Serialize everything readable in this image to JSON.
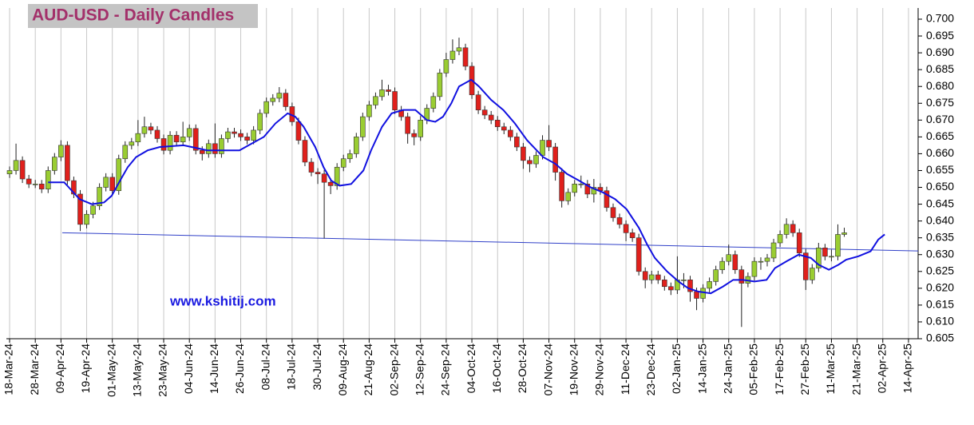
{
  "chart_data": {
    "type": "candlestick",
    "title": "AUD-USD - Daily Candles",
    "annotation": "www.kshitij.com",
    "up_color": "#9acd32",
    "down_color": "#e0201c",
    "grid": true,
    "xlim": [
      -0.5,
      141.5
    ],
    "ylim": [
      0.605,
      0.7
    ],
    "yticks": [
      {
        "value": 0.605,
        "label": "0.605"
      },
      {
        "value": 0.61,
        "label": "0.610"
      },
      0.615,
      {
        "value": 0.62,
        "label": "0.620"
      },
      0.625,
      {
        "value": 0.63,
        "label": "0.630"
      },
      0.635,
      {
        "value": 0.64,
        "label": "0.640"
      },
      0.645,
      {
        "value": 0.65,
        "label": "0.650"
      },
      0.655,
      {
        "value": 0.66,
        "label": "0.660"
      },
      0.665,
      {
        "value": 0.67,
        "label": "0.670"
      },
      0.675,
      {
        "value": 0.68,
        "label": "0.680"
      },
      0.685,
      {
        "value": 0.69,
        "label": "0.690"
      },
      0.695,
      {
        "value": 0.7,
        "label": "0.700"
      }
    ],
    "xticks": [
      {
        "value": 0,
        "label": "18-Mar-24"
      },
      {
        "value": 4,
        "label": "28-Mar-24"
      },
      {
        "value": 8,
        "label": "09-Apr-24"
      },
      {
        "value": 12,
        "label": "19-Apr-24"
      },
      {
        "value": 16,
        "label": "01-May-24"
      },
      {
        "value": 20,
        "label": "13-May-24"
      },
      {
        "value": 24,
        "label": "23-May-24"
      },
      {
        "value": 28,
        "label": "04-Jun-24"
      },
      {
        "value": 32,
        "label": "14-Jun-24"
      },
      {
        "value": 36,
        "label": "26-Jun-24"
      },
      {
        "value": 40,
        "label": "08-Jul-24"
      },
      {
        "value": 44,
        "label": "18-Jul-24"
      },
      {
        "value": 48,
        "label": "30-Jul-24"
      },
      {
        "value": 52,
        "label": "09-Aug-24"
      },
      {
        "value": 56,
        "label": "21-Aug-24"
      },
      {
        "value": 60,
        "label": "02-Sep-24"
      },
      {
        "value": 64,
        "label": "12-Sep-24"
      },
      {
        "value": 68,
        "label": "24-Sep-24"
      },
      {
        "value": 72,
        "label": "04-Oct-24"
      },
      {
        "value": 76,
        "label": "16-Oct-24"
      },
      {
        "value": 80,
        "label": "28-Oct-24"
      },
      {
        "value": 84,
        "label": "07-Nov-24"
      },
      {
        "value": 88,
        "label": "19-Nov-24"
      },
      {
        "value": 92,
        "label": "29-Nov-24"
      },
      {
        "value": 96,
        "label": "11-Dec-24"
      },
      {
        "value": 100,
        "label": "23-Dec-24"
      },
      {
        "value": 104,
        "label": "02-Jan-25"
      },
      {
        "value": 108,
        "label": "14-Jan-25"
      },
      {
        "value": 112,
        "label": "24-Jan-25"
      },
      {
        "value": 116,
        "label": "05-Feb-25"
      },
      {
        "value": 120,
        "label": "17-Feb-25"
      },
      {
        "value": 124,
        "label": "27-Feb-25"
      },
      {
        "value": 128,
        "label": "11-Mar-25"
      },
      {
        "value": 132,
        "label": "21-Mar-25"
      },
      {
        "value": 136,
        "label": "02-Apr-25"
      },
      {
        "value": 140,
        "label": "14-Apr-25"
      }
    ],
    "open": [
      0.654,
      0.655,
      0.658,
      0.6525,
      0.651,
      0.651,
      0.6495,
      0.655,
      0.659,
      0.6625,
      0.652,
      0.648,
      0.639,
      0.642,
      0.6445,
      0.65,
      0.653,
      0.649,
      0.6585,
      0.6625,
      0.6635,
      0.666,
      0.668,
      0.667,
      0.6645,
      0.661,
      0.6655,
      0.6635,
      0.665,
      0.6675,
      0.661,
      0.66,
      0.663,
      0.66,
      0.6645,
      0.6665,
      0.666,
      0.665,
      0.664,
      0.667,
      0.672,
      0.6755,
      0.6765,
      0.678,
      0.674,
      0.6695,
      0.664,
      0.6575,
      0.6545,
      0.654,
      0.6515,
      0.6505,
      0.656,
      0.6585,
      0.66,
      0.665,
      0.671,
      0.6745,
      0.677,
      0.679,
      0.6785,
      0.673,
      0.671,
      0.666,
      0.665,
      0.67,
      0.6735,
      0.677,
      0.684,
      0.688,
      0.6905,
      0.6915,
      0.686,
      0.6775,
      0.673,
      0.6715,
      0.67,
      0.668,
      0.667,
      0.665,
      0.662,
      0.658,
      0.657,
      0.6595,
      0.664,
      0.662,
      0.6545,
      0.646,
      0.6485,
      0.651,
      0.651,
      0.648,
      0.65,
      0.649,
      0.644,
      0.641,
      0.639,
      0.6365,
      0.635,
      0.625,
      0.6225,
      0.624,
      0.6225,
      0.6205,
      0.6195,
      0.6225,
      0.6225,
      0.619,
      0.617,
      0.62,
      0.622,
      0.6255,
      0.628,
      0.63,
      0.6255,
      0.6215,
      0.6235,
      0.628,
      0.628,
      0.629,
      0.6335,
      0.636,
      0.639,
      0.6365,
      0.6305,
      0.6225,
      0.626,
      0.632,
      0.6295,
      0.6295,
      0.636
    ],
    "high": [
      0.6562,
      0.663,
      0.6592,
      0.6537,
      0.6522,
      0.6522,
      0.6562,
      0.6602,
      0.664,
      0.6637,
      0.6532,
      0.6492,
      0.6432,
      0.6457,
      0.6512,
      0.6542,
      0.6542,
      0.6597,
      0.6637,
      0.6647,
      0.67,
      0.671,
      0.6692,
      0.6682,
      0.6657,
      0.6667,
      0.6667,
      0.6695,
      0.6687,
      0.6687,
      0.6622,
      0.6642,
      0.669,
      0.6657,
      0.6677,
      0.6677,
      0.6672,
      0.6662,
      0.6682,
      0.6732,
      0.6767,
      0.6777,
      0.6798,
      0.6792,
      0.6752,
      0.6707,
      0.6652,
      0.6587,
      0.6557,
      0.6552,
      0.6527,
      0.6572,
      0.6597,
      0.6612,
      0.6662,
      0.6722,
      0.6757,
      0.6782,
      0.682,
      0.6805,
      0.6797,
      0.6742,
      0.6722,
      0.6672,
      0.6712,
      0.6747,
      0.6782,
      0.6852,
      0.69,
      0.694,
      0.6945,
      0.6927,
      0.6872,
      0.6787,
      0.6742,
      0.6727,
      0.6712,
      0.6692,
      0.6682,
      0.6662,
      0.6632,
      0.6592,
      0.6607,
      0.6655,
      0.6685,
      0.6632,
      0.6557,
      0.6497,
      0.6522,
      0.6535,
      0.6522,
      0.6525,
      0.6512,
      0.6502,
      0.6452,
      0.6422,
      0.6402,
      0.6377,
      0.6362,
      0.6262,
      0.6252,
      0.6252,
      0.6237,
      0.6217,
      0.6295,
      0.6245,
      0.6237,
      0.6202,
      0.6212,
      0.6232,
      0.6267,
      0.6292,
      0.633,
      0.6312,
      0.6267,
      0.6247,
      0.6292,
      0.6292,
      0.6302,
      0.6347,
      0.6372,
      0.6408,
      0.6402,
      0.6377,
      0.6317,
      0.6272,
      0.6335,
      0.6332,
      0.6315,
      0.639,
      0.638
    ],
    "low": [
      0.6528,
      0.6538,
      0.6513,
      0.6498,
      0.6498,
      0.6483,
      0.6483,
      0.6538,
      0.6578,
      0.6508,
      0.6468,
      0.637,
      0.6378,
      0.6408,
      0.6433,
      0.6488,
      0.6478,
      0.6478,
      0.6573,
      0.6613,
      0.6623,
      0.6648,
      0.6658,
      0.6633,
      0.6598,
      0.6598,
      0.6623,
      0.6623,
      0.6638,
      0.6598,
      0.658,
      0.6588,
      0.6588,
      0.6588,
      0.6633,
      0.6648,
      0.6638,
      0.6628,
      0.6628,
      0.6658,
      0.6708,
      0.6743,
      0.6753,
      0.6728,
      0.6683,
      0.6628,
      0.6563,
      0.6533,
      0.651,
      0.6348,
      0.648,
      0.6493,
      0.6548,
      0.6573,
      0.6588,
      0.6638,
      0.6698,
      0.6733,
      0.6758,
      0.6773,
      0.6718,
      0.6698,
      0.663,
      0.6625,
      0.6638,
      0.6688,
      0.6723,
      0.6758,
      0.6828,
      0.6868,
      0.6893,
      0.6848,
      0.6763,
      0.6718,
      0.6703,
      0.6688,
      0.6668,
      0.6658,
      0.6638,
      0.6608,
      0.6555,
      0.6545,
      0.6558,
      0.6583,
      0.6608,
      0.652,
      0.644,
      0.6448,
      0.6473,
      0.6498,
      0.6468,
      0.6455,
      0.6478,
      0.6428,
      0.6398,
      0.6378,
      0.634,
      0.6338,
      0.6238,
      0.62,
      0.6213,
      0.6213,
      0.6193,
      0.618,
      0.6183,
      0.62,
      0.616,
      0.6135,
      0.6158,
      0.6188,
      0.6208,
      0.6243,
      0.6268,
      0.6243,
      0.6085,
      0.6203,
      0.6223,
      0.6255,
      0.6265,
      0.6278,
      0.6323,
      0.6348,
      0.6353,
      0.6293,
      0.6195,
      0.6213,
      0.6248,
      0.6283,
      0.628,
      0.6283,
      0.6353
    ],
    "close": [
      0.655,
      0.658,
      0.6525,
      0.651,
      0.651,
      0.6495,
      0.655,
      0.659,
      0.6625,
      0.652,
      0.648,
      0.639,
      0.642,
      0.6445,
      0.65,
      0.653,
      0.649,
      0.6585,
      0.6625,
      0.6635,
      0.666,
      0.668,
      0.667,
      0.6645,
      0.661,
      0.6655,
      0.6635,
      0.665,
      0.6675,
      0.661,
      0.66,
      0.663,
      0.66,
      0.6645,
      0.6665,
      0.666,
      0.665,
      0.664,
      0.667,
      0.672,
      0.6755,
      0.6765,
      0.678,
      0.674,
      0.6695,
      0.664,
      0.6575,
      0.6545,
      0.654,
      0.6515,
      0.6505,
      0.656,
      0.6585,
      0.66,
      0.665,
      0.671,
      0.6745,
      0.677,
      0.679,
      0.6785,
      0.673,
      0.671,
      0.666,
      0.665,
      0.67,
      0.6735,
      0.677,
      0.684,
      0.688,
      0.6905,
      0.6915,
      0.686,
      0.6775,
      0.673,
      0.6715,
      0.67,
      0.668,
      0.667,
      0.665,
      0.662,
      0.658,
      0.657,
      0.6595,
      0.664,
      0.662,
      0.6545,
      0.646,
      0.6485,
      0.651,
      0.651,
      0.648,
      0.65,
      0.649,
      0.644,
      0.641,
      0.639,
      0.6365,
      0.635,
      0.625,
      0.6225,
      0.624,
      0.6225,
      0.6205,
      0.6195,
      0.6225,
      0.6225,
      0.619,
      0.617,
      0.62,
      0.622,
      0.6255,
      0.628,
      0.63,
      0.6255,
      0.6215,
      0.6235,
      0.628,
      0.628,
      0.629,
      0.6335,
      0.636,
      0.639,
      0.6365,
      0.6305,
      0.6225,
      0.626,
      0.632,
      0.6295,
      0.6295,
      0.636,
      0.6365
    ],
    "ma": {
      "color": "#1010e0",
      "x": [
        6.0,
        8.5,
        9.7,
        10.9,
        12.8,
        14.7,
        15.9,
        17.2,
        18.4,
        19.7,
        21.5,
        23.4,
        27.1,
        30.8,
        35.8,
        37.7,
        39.6,
        41.4,
        43.3,
        44.5,
        45.8,
        47.6,
        48.9,
        50.1,
        51.4,
        53.2,
        55.1,
        56.3,
        58.0,
        59.5,
        61.3,
        63.2,
        65.0,
        66.3,
        67.5,
        68.8,
        70.0,
        71.9,
        73.1,
        75.0,
        76.9,
        78.7,
        80.6,
        83.1,
        85.0,
        86.8,
        88.7,
        90.5,
        92.4,
        94.3,
        96.1,
        98.0,
        99.3,
        100.5,
        102.4,
        104.2,
        105.7,
        107.3,
        109.2,
        111.1,
        112.7,
        114.2,
        116.0,
        117.9,
        119.2,
        121.0,
        122.9,
        124.8,
        126.0,
        127.6,
        129.1,
        130.3,
        132.2,
        134.1,
        135.3,
        136.3
      ],
      "values": [
        0.6515,
        0.6515,
        0.649,
        0.6465,
        0.645,
        0.6455,
        0.6475,
        0.652,
        0.656,
        0.659,
        0.661,
        0.662,
        0.6625,
        0.661,
        0.661,
        0.663,
        0.665,
        0.669,
        0.672,
        0.671,
        0.668,
        0.662,
        0.656,
        0.652,
        0.6505,
        0.651,
        0.655,
        0.661,
        0.668,
        0.672,
        0.673,
        0.673,
        0.67,
        0.6695,
        0.671,
        0.675,
        0.68,
        0.682,
        0.68,
        0.676,
        0.673,
        0.669,
        0.664,
        0.659,
        0.657,
        0.654,
        0.652,
        0.65,
        0.6485,
        0.6465,
        0.6435,
        0.638,
        0.633,
        0.629,
        0.625,
        0.622,
        0.62,
        0.619,
        0.6185,
        0.6205,
        0.6225,
        0.6225,
        0.622,
        0.6225,
        0.626,
        0.628,
        0.63,
        0.629,
        0.627,
        0.6255,
        0.627,
        0.6285,
        0.6295,
        0.631,
        0.6345,
        0.636
      ]
    },
    "trendline": {
      "color": "#3040c8",
      "x": [
        8.2,
        141.5
      ],
      "values": [
        0.6365,
        0.6311
      ]
    }
  }
}
